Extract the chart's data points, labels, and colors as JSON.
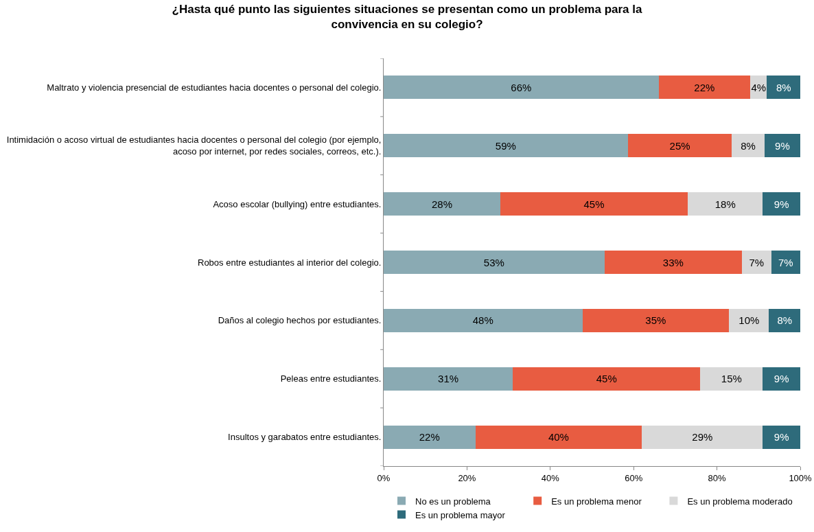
{
  "chart_data": {
    "type": "bar",
    "orientation": "horizontal",
    "stacked": true,
    "title": "¿Hasta qué punto las siguientes situaciones se presentan como un problema para la convivencia en su colegio?",
    "categories": [
      "Maltrato y violencia presencial de estudiantes hacia docentes o personal del colegio.",
      "Intimidación o acoso virtual de estudiantes hacia docentes o personal del colegio (por ejemplo, acoso por internet, por redes sociales, correos, etc.).",
      "Acoso escolar (bullying) entre estudiantes.",
      "Robos entre estudiantes al interior del colegio.",
      "Daños al colegio hechos por estudiantes.",
      "Peleas entre estudiantes.",
      "Insultos y garabatos entre estudiantes."
    ],
    "series": [
      {
        "name": "No es un problema",
        "color": "#8aaab3",
        "values": [
          66,
          58.6,
          28,
          53,
          47.7,
          31,
          22
        ],
        "value_labels": [
          "66%",
          "59%",
          "28%",
          "53%",
          "48%",
          "31%",
          "22%"
        ]
      },
      {
        "name": "Es un problema menor",
        "color": "#e85c41",
        "values": [
          22,
          25,
          45,
          33,
          35.2,
          45,
          40
        ],
        "value_labels": [
          "22%",
          "25%",
          "45%",
          "33%",
          "35%",
          "45%",
          "40%"
        ]
      },
      {
        "name": "Es un problema moderado",
        "color": "#d9d9d9",
        "values": [
          4,
          7.8,
          18,
          7,
          9.6,
          15,
          29
        ],
        "value_labels": [
          "4%",
          "8%",
          "18%",
          "7%",
          "10%",
          "15%",
          "29%"
        ]
      },
      {
        "name": "Es un problema mayor",
        "color": "#2e6b7b",
        "values": [
          8,
          8.6,
          9,
          7,
          7.5,
          9,
          9
        ],
        "value_labels": [
          "8%",
          "9%",
          "9%",
          "7%",
          "8%",
          "9%",
          "9%"
        ]
      }
    ],
    "xlim": [
      0,
      100
    ],
    "xticks": [
      {
        "value": 0,
        "label": "0%"
      },
      {
        "value": 20,
        "label": "20%"
      },
      {
        "value": 40,
        "label": "40%"
      },
      {
        "value": 60,
        "label": "60%"
      },
      {
        "value": 80,
        "label": "80%"
      },
      {
        "value": 100,
        "label": "100%"
      }
    ],
    "grid": false,
    "legend": "bottom"
  }
}
